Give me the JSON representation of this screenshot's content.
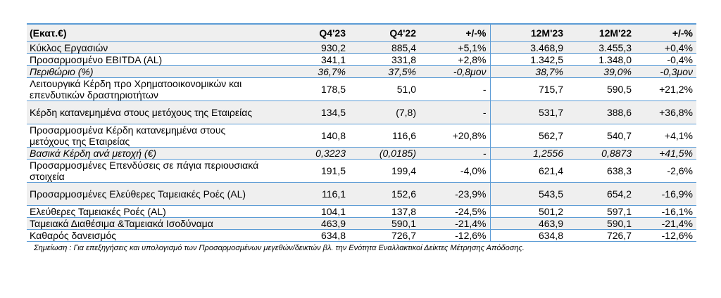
{
  "header": [
    "(Εκατ.€)",
    "Q4'23",
    "Q4'22",
    "+/-%",
    "12M'23",
    "12M'22",
    "+/-%"
  ],
  "rows": [
    {
      "label": "Κύκλος Εργασιών",
      "v": [
        "930,2",
        "885,4",
        "+5,1%",
        "3.468,9",
        "3.455,3",
        "+0,4%"
      ]
    },
    {
      "label": "Προσαρμοσμένο EBITDA (AL)",
      "v": [
        "341,1",
        "331,8",
        "+2,8%",
        "1.342,5",
        "1.348,0",
        "-0,4%"
      ]
    },
    {
      "label": "Περιθώριο (%)",
      "v": [
        "36,7%",
        "37,5%",
        "-0,8μον",
        "38,7%",
        "39,0%",
        "-0,3μον"
      ]
    },
    {
      "label": "Λειτουργικά Κέρδη προ Χρηματοοικονομικών και επενδυτικών δραστηριοτήτων",
      "v": [
        "178,5",
        "51,0",
        "-",
        "715,7",
        "590,5",
        "+21,2%"
      ]
    },
    {
      "label": "Κέρδη κατανεμημένα στους μετόχους της Εταιρείας",
      "v": [
        "134,5",
        "(7,8)",
        "-",
        "531,7",
        "388,6",
        "+36,8%"
      ]
    },
    {
      "label": "Προσαρμοσμένα Κέρδη κατανεμημένα στους μετόχους της Εταιρείας",
      "v": [
        "140,8",
        "116,6",
        "+20,8%",
        "562,7",
        "540,7",
        "+4,1%"
      ]
    },
    {
      "label": "Βασικά Κέρδη ανά μετοχή (€)",
      "v": [
        "0,3223",
        "(0,0185)",
        "-",
        "1,2556",
        "0,8873",
        "+41,5%"
      ]
    },
    {
      "label": "Προσαρμοσμένες Επενδύσεις σε πάγια περιουσιακά στοιχεία",
      "v": [
        "191,5",
        "199,4",
        "-4,0%",
        "621,4",
        "638,3",
        "-2,6%"
      ]
    },
    {
      "label": "Προσαρμοσμένες Ελεύθερες Ταμειακές Ροές (AL)",
      "v": [
        "116,1",
        "152,6",
        "-23,9%",
        "543,5",
        "654,2",
        "-16,9%"
      ]
    },
    {
      "label": "Ελεύθερες Ταμειακές Ροές (AL)",
      "v": [
        "104,1",
        "137,8",
        "-24,5%",
        "501,2",
        "597,1",
        "-16,1%"
      ]
    },
    {
      "label": "Ταμειακά Διαθέσιμα &Ταμειακά Ισοδύναμα",
      "v": [
        "463,9",
        "590,1",
        "-21,4%",
        "463,9",
        "590,1",
        "-21,4%"
      ]
    },
    {
      "label": "Καθαρός δανεισμός",
      "v": [
        "634,8",
        "726,7",
        "-12,6%",
        "634,8",
        "726,7",
        "-12,6%"
      ]
    }
  ],
  "note": "Σημείωση : Για επεξηγήσεις και υπολογισμό των Προσαρμοσμένων μεγεθών/δεικτών βλ. την Ενότητα Εναλλακτικοί Δείκτες Μέτρησης Απόδοσης."
}
